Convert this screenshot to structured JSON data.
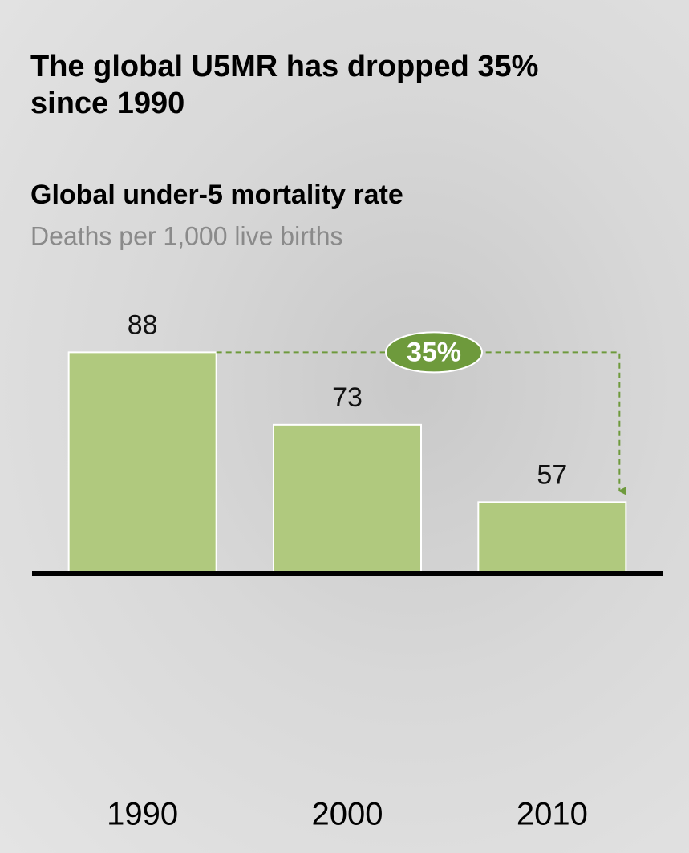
{
  "chart_data": {
    "type": "bar",
    "headline": "The global U5MR has dropped 35% since 1990",
    "title": "Global under-5 mortality rate",
    "subtitle": "Deaths per 1,000 live births",
    "categories": [
      "1990",
      "2000",
      "2010"
    ],
    "values": [
      88,
      73,
      57
    ],
    "color": "#b0c97e",
    "ylim": [
      42.3,
      100
    ],
    "annotation": {
      "text": "35%",
      "color": "#6e9a3c"
    }
  }
}
